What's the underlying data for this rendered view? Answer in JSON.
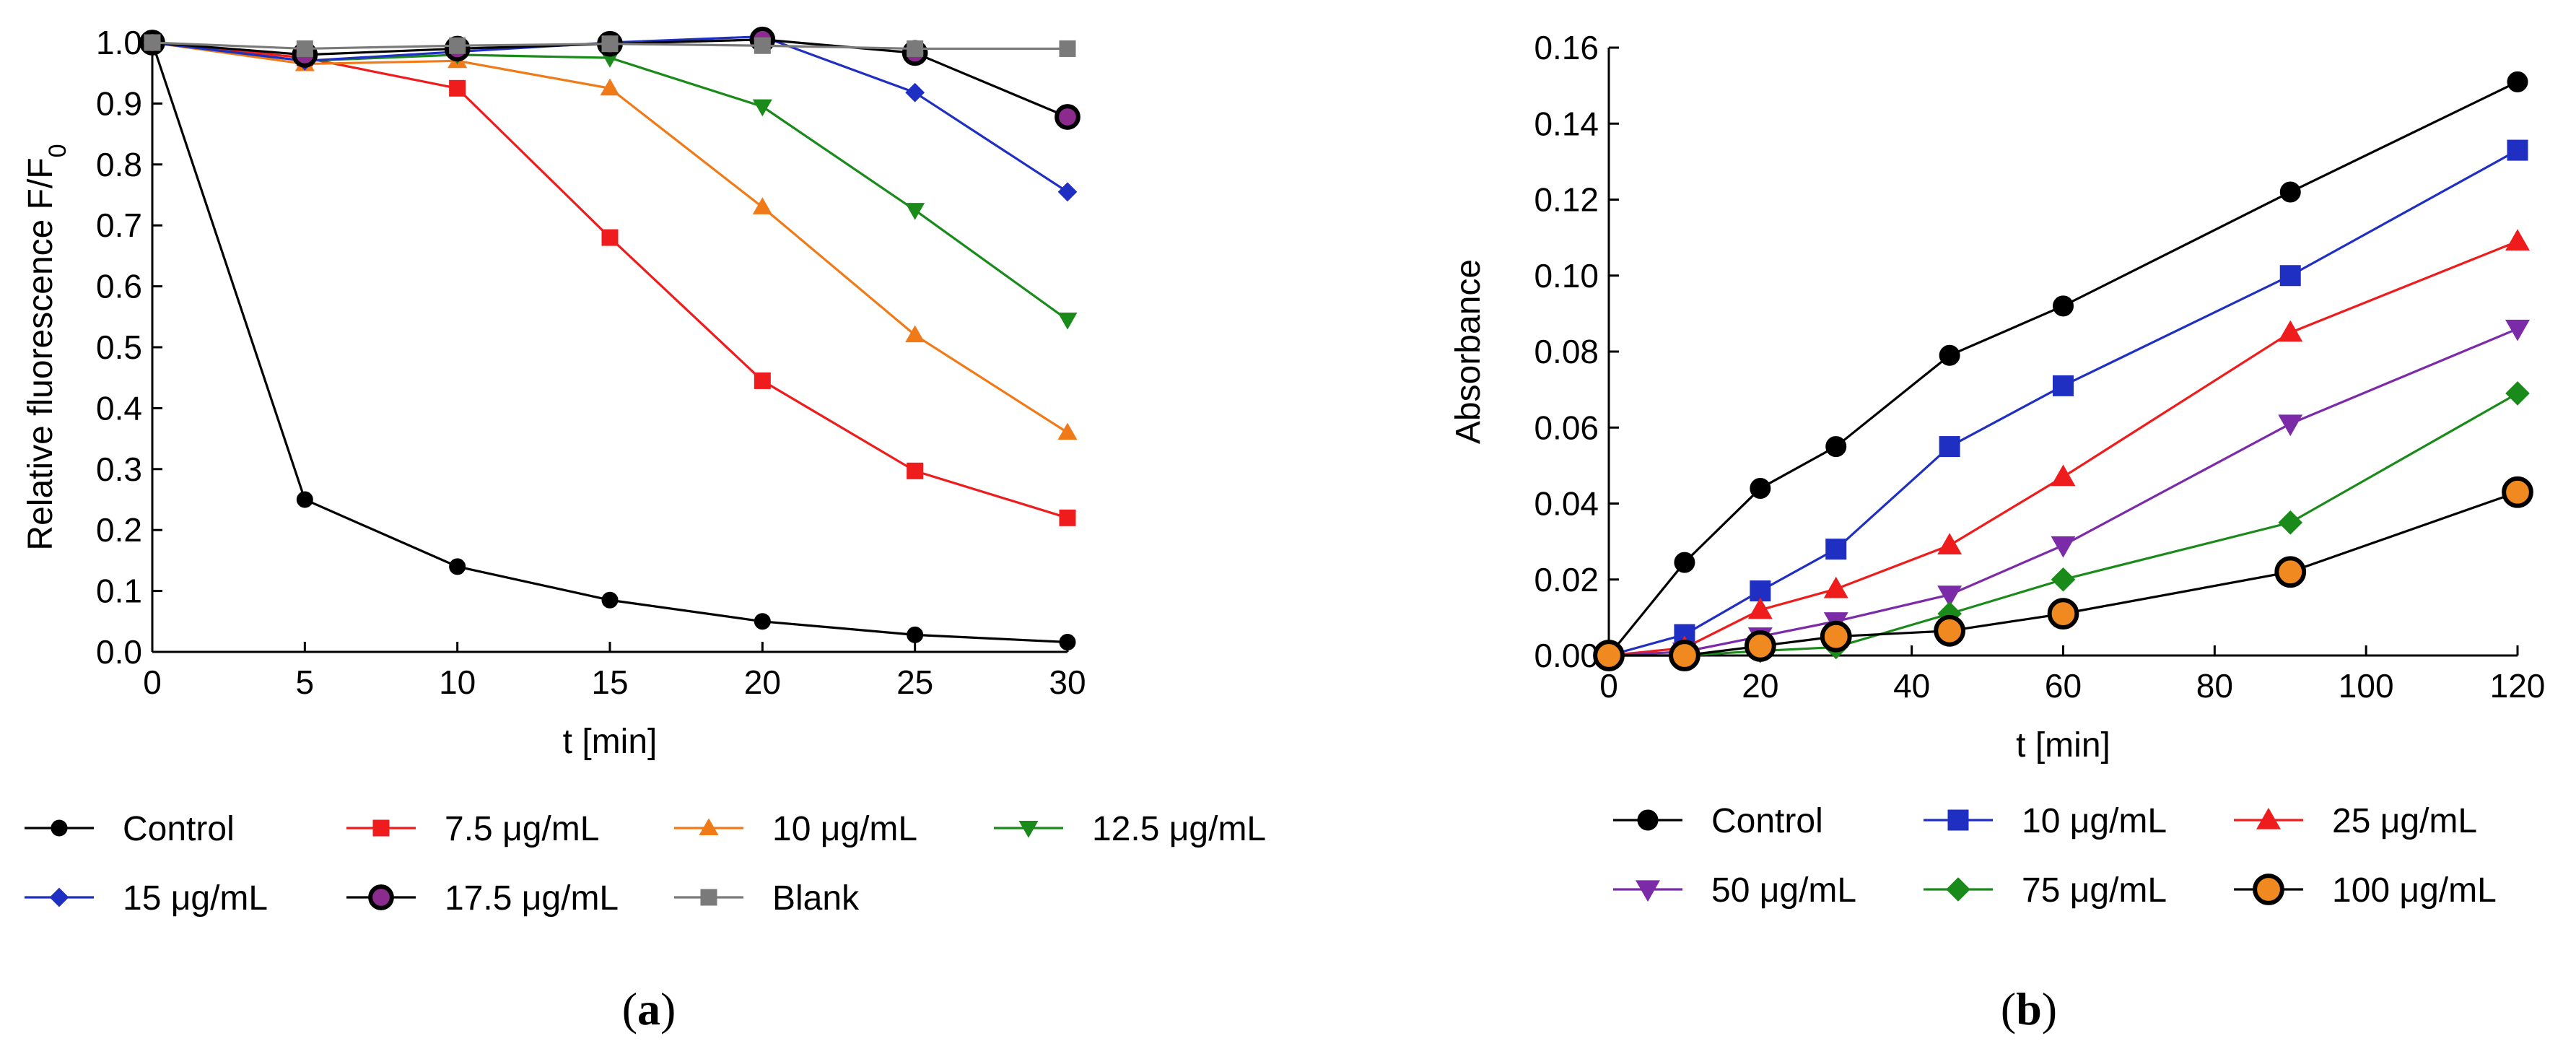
{
  "chart_data": [
    {
      "type": "line",
      "panel": "a",
      "xlabel": "t [min]",
      "ylabel": "Relative fluorescence F/F",
      "ylabel_subscript": "0",
      "xlim": [
        0,
        30
      ],
      "ylim": [
        0,
        1.0
      ],
      "x_ticks": [
        0,
        5,
        10,
        15,
        20,
        25,
        30
      ],
      "y_ticks": [
        0,
        0.1,
        0.2,
        0.3,
        0.4,
        0.5,
        0.6,
        0.7,
        0.8,
        0.9,
        1.0
      ],
      "x_tick_labels": [
        "0",
        "5",
        "10",
        "15",
        "20",
        "25",
        "30"
      ],
      "y_tick_labels": [
        "0.0",
        "0.1",
        "0.2",
        "0.3",
        "0.4",
        "0.5",
        "0.6",
        "0.7",
        "0.8",
        "0.9",
        "1.0"
      ],
      "x": [
        0,
        5,
        10,
        15,
        20,
        25,
        30
      ],
      "series": [
        {
          "name": "Control",
          "color": "#000000",
          "marker": "circle",
          "values": [
            1.0,
            0.25,
            0.14,
            0.085,
            0.05,
            0.028,
            0.016
          ]
        },
        {
          "name": "7.5 μg/mL",
          "color": "#ee1c1c",
          "marker": "square",
          "values": [
            1.0,
            0.975,
            0.925,
            0.68,
            0.445,
            0.297,
            0.22
          ]
        },
        {
          "name": "10 μg/mL",
          "color": "#f07a18",
          "marker": "triangle-up",
          "values": [
            1.0,
            0.965,
            0.97,
            0.925,
            0.73,
            0.52,
            0.36
          ]
        },
        {
          "name": "12.5 μg/mL",
          "color": "#1a8a1a",
          "marker": "triangle-down",
          "values": [
            1.0,
            0.97,
            0.98,
            0.975,
            0.895,
            0.725,
            0.545
          ]
        },
        {
          "name": "15 μg/mL",
          "color": "#1e2fc2",
          "marker": "diamond",
          "values": [
            1.0,
            0.97,
            0.985,
            1.0,
            1.01,
            0.918,
            0.755
          ]
        },
        {
          "name": "17.5 μg/mL",
          "color": "#000000",
          "fill": "#8b2b8e",
          "marker": "circle-filled",
          "values": [
            1.0,
            0.98,
            0.99,
            0.998,
            1.005,
            0.983,
            0.878
          ]
        },
        {
          "name": "Blank",
          "color": "#7a7a7a",
          "marker": "square",
          "values": [
            1.0,
            0.99,
            0.995,
            0.998,
            0.995,
            0.99,
            0.99
          ]
        }
      ],
      "panel_label": "a"
    },
    {
      "type": "line",
      "panel": "b",
      "xlabel": "t [min]",
      "ylabel": "Absorbance",
      "xlim": [
        0,
        120
      ],
      "ylim": [
        0,
        0.16
      ],
      "x_ticks": [
        0,
        20,
        40,
        60,
        80,
        100,
        120
      ],
      "y_ticks": [
        0,
        0.02,
        0.04,
        0.06,
        0.08,
        0.1,
        0.12,
        0.14,
        0.16
      ],
      "x_tick_labels": [
        "0",
        "20",
        "40",
        "60",
        "80",
        "100",
        "120"
      ],
      "y_tick_labels": [
        "0.00",
        "0.02",
        "0.04",
        "0.06",
        "0.08",
        "0.10",
        "0.12",
        "0.14",
        "0.16"
      ],
      "x": [
        0,
        10,
        20,
        30,
        45,
        60,
        90,
        120
      ],
      "series": [
        {
          "name": "Control",
          "color": "#000000",
          "marker": "circle",
          "values": [
            0.0,
            0.0245,
            0.044,
            0.055,
            0.079,
            0.092,
            0.122,
            0.151
          ]
        },
        {
          "name": "10 μg/mL",
          "color": "#1e2fc2",
          "marker": "square",
          "values": [
            0.0,
            0.0055,
            0.017,
            0.028,
            0.055,
            0.071,
            0.1,
            0.133
          ]
        },
        {
          "name": "25 μg/mL",
          "color": "#ee1c1c",
          "marker": "triangle-up",
          "values": [
            0.0,
            0.002,
            0.012,
            0.0175,
            0.029,
            0.047,
            0.085,
            0.109
          ]
        },
        {
          "name": "50 μg/mL",
          "color": "#7b2aa8",
          "marker": "triangle-down",
          "values": [
            0.0,
            0.001,
            0.005,
            0.009,
            0.016,
            0.029,
            0.061,
            0.086
          ]
        },
        {
          "name": "75 μg/mL",
          "color": "#1a8a1a",
          "marker": "diamond",
          "values": [
            0.0,
            0.0,
            0.0012,
            0.0022,
            0.011,
            0.02,
            0.035,
            0.069
          ]
        },
        {
          "name": "100 μg/mL",
          "color": "#000000",
          "fill": "#f08a20",
          "marker": "circle-filled",
          "values": [
            0.0,
            0.0,
            0.0025,
            0.005,
            0.0065,
            0.011,
            0.022,
            0.043
          ]
        }
      ],
      "panel_label": "b"
    }
  ]
}
